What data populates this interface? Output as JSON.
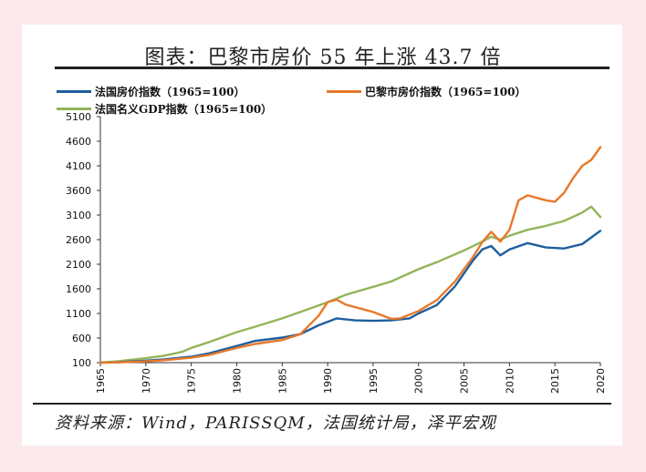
{
  "title": "图表：巴黎市房价 55 年上涨 43.7 倍",
  "source": "资料来源：Wind，PARISSQM，法国统计局，泽平宏观",
  "watermark": "泽平宏观",
  "colors": {
    "france_house": "#1f5e9e",
    "paris_house": "#e8782a",
    "gdp": "#93b55a"
  },
  "chart_data": {
    "type": "line",
    "title": "图表：巴黎市房价 55 年上涨 43.7 倍",
    "xlabel": "",
    "ylabel": "",
    "xlim": [
      1965,
      2020
    ],
    "ylim": [
      100,
      5100
    ],
    "y_ticks": [
      100,
      600,
      1100,
      1600,
      2100,
      2600,
      3100,
      3600,
      4100,
      4600,
      5100
    ],
    "x_ticks": [
      1965,
      1970,
      1975,
      1980,
      1985,
      1990,
      1995,
      2000,
      2005,
      2010,
      2015,
      2020
    ],
    "legend_position": "top-left",
    "grid": false,
    "series": [
      {
        "name": "法国房价指数（1965=100）",
        "color": "#1f5e9e",
        "x": [
          1965,
          1967,
          1970,
          1972,
          1975,
          1977,
          1980,
          1982,
          1985,
          1987,
          1989,
          1991,
          1993,
          1995,
          1997,
          1999,
          2000,
          2002,
          2004,
          2006,
          2007,
          2008,
          2009,
          2010,
          2012,
          2014,
          2016,
          2018,
          2020
        ],
        "y": [
          100,
          110,
          140,
          165,
          220,
          290,
          440,
          540,
          610,
          680,
          860,
          1000,
          960,
          950,
          960,
          1000,
          1100,
          1270,
          1650,
          2180,
          2400,
          2470,
          2280,
          2400,
          2530,
          2440,
          2420,
          2510,
          2780
        ]
      },
      {
        "name": "巴黎市房价指数（1965=100）",
        "color": "#e8782a",
        "x": [
          1965,
          1967,
          1970,
          1972,
          1975,
          1977,
          1980,
          1982,
          1985,
          1987,
          1989,
          1990,
          1991,
          1992,
          1994,
          1995,
          1997,
          1998,
          2000,
          2002,
          2004,
          2006,
          2007,
          2008,
          2009,
          2010,
          2011,
          2012,
          2014,
          2015,
          2016,
          2017,
          2018,
          2019,
          2020
        ],
        "y": [
          100,
          105,
          125,
          150,
          200,
          260,
          400,
          480,
          560,
          680,
          1050,
          1330,
          1380,
          1280,
          1180,
          1130,
          990,
          1000,
          1150,
          1370,
          1750,
          2250,
          2550,
          2760,
          2560,
          2800,
          3400,
          3500,
          3400,
          3370,
          3550,
          3850,
          4100,
          4220,
          4480
        ]
      },
      {
        "name": "法国名义GDP指数（1965=100）",
        "color": "#93b55a",
        "x": [
          1965,
          1967,
          1970,
          1972,
          1974,
          1975,
          1977,
          1980,
          1982,
          1985,
          1987,
          1990,
          1992,
          1995,
          1997,
          2000,
          2002,
          2005,
          2007,
          2008,
          2009,
          2010,
          2012,
          2014,
          2016,
          2018,
          2019,
          2020
        ],
        "y": [
          100,
          130,
          190,
          240,
          320,
          400,
          520,
          720,
          830,
          1000,
          1130,
          1330,
          1480,
          1640,
          1750,
          2000,
          2140,
          2380,
          2560,
          2660,
          2600,
          2680,
          2800,
          2880,
          2980,
          3150,
          3270,
          3060
        ]
      }
    ]
  }
}
